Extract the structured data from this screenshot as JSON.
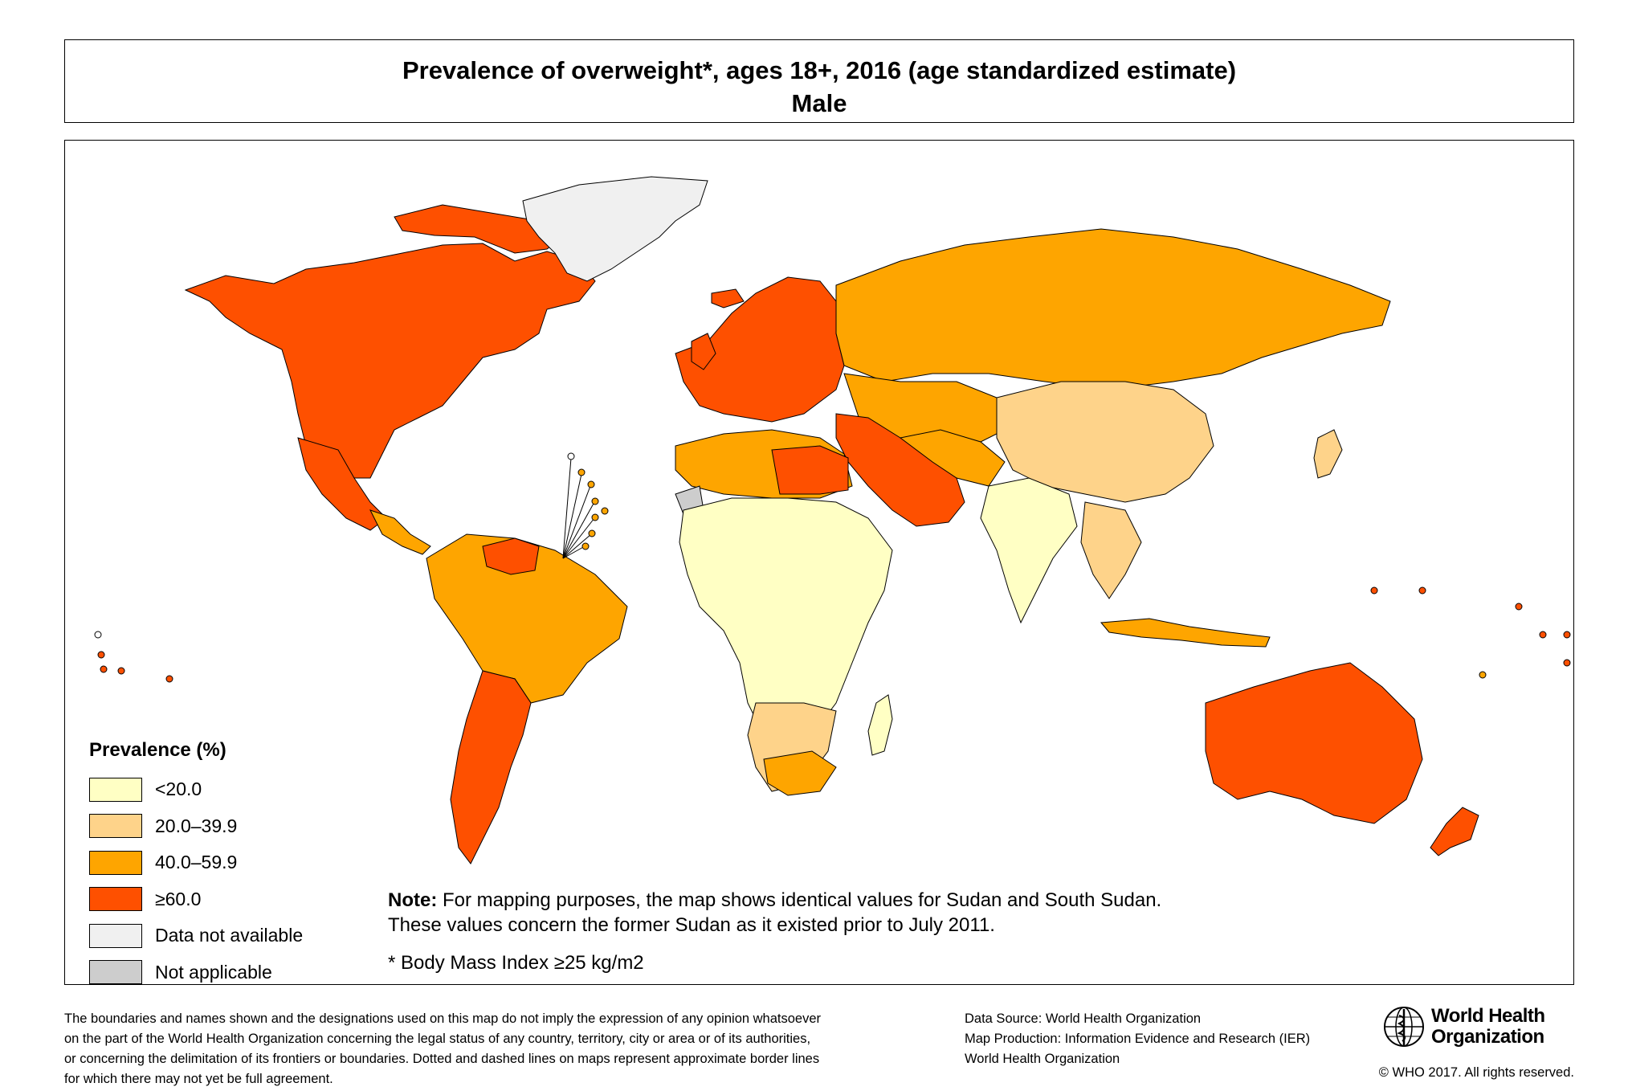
{
  "title": {
    "line1": "Prevalence of  overweight*, ages 18+, 2016 (age standardized estimate)",
    "line2": "Male"
  },
  "colors": {
    "lt20": "#FFFFC4",
    "c20_39": "#FED38A",
    "c40_59": "#FEA500",
    "gte60": "#FE5000",
    "no_data": "#F0F0F0",
    "not_applicable": "#CDCDCD",
    "ocean": "#FFFFFF",
    "border": "#000000"
  },
  "legend": {
    "title": "Prevalence (%)",
    "items": [
      {
        "label": "<20.0",
        "color": "#FFFFC4"
      },
      {
        "label": "20.0–39.9",
        "color": "#FED38A"
      },
      {
        "label": "40.0–59.9",
        "color": "#FEA500"
      },
      {
        "label": "≥60.0",
        "color": "#FE5000"
      },
      {
        "label": "Data not available",
        "color": "#F0F0F0"
      },
      {
        "label": "Not applicable",
        "color": "#CDCDCD"
      }
    ]
  },
  "note": {
    "bold": "Note:",
    "text1": " For mapping purposes, the map shows identical values for Sudan and South Sudan.",
    "text2": "These values concern the former Sudan as it existed prior to July 2011."
  },
  "bmi_footnote": "* Body Mass Index ≥25 kg/m2",
  "disclaimer": [
    "The boundaries and names shown and the designations used on this map do not imply the expression of any opinion whatsoever",
    "on the part of the World Health Organization concerning the legal status of any country, territory, city or area or of its authorities,",
    "or concerning the delimitation of its frontiers or boundaries. Dotted and dashed lines on maps represent approximate border lines",
    "for which there may not yet be full agreement."
  ],
  "credits": [
    "Data Source: World Health Organization",
    "Map Production: Information Evidence and Research (IER)",
    "World Health Organization"
  ],
  "logo": {
    "line1": "World Health",
    "line2": "Organization"
  },
  "copyright": "© WHO 2017. All rights reserved."
}
